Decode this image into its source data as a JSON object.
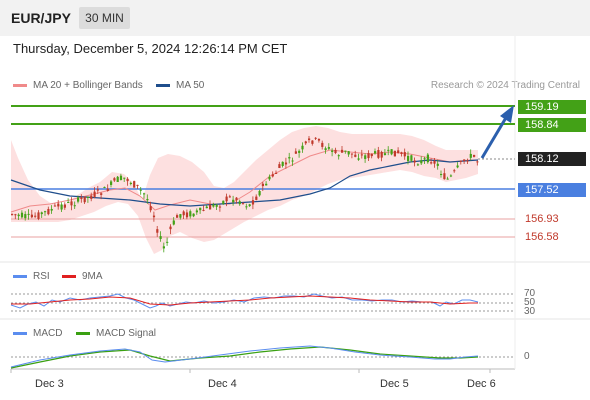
{
  "header": {
    "symbol": "EUR/JPY",
    "timeframe": "30 MIN"
  },
  "datetime": "Thursday, December 5, 2024 12:26:14 PM CET",
  "main_legend": [
    {
      "label": "MA 20 + Bollinger Bands",
      "color": "#f08a8a"
    },
    {
      "label": "MA 50",
      "color": "#1f4e8c"
    }
  ],
  "copyright": "Research © 2024 Trading Central",
  "price_levels": [
    {
      "value": "159.19",
      "style": "green"
    },
    {
      "value": "158.84",
      "style": "green"
    },
    {
      "value": "158.12",
      "style": "dark"
    },
    {
      "value": "157.52",
      "style": "blue"
    },
    {
      "value": "156.93",
      "style": "red"
    },
    {
      "value": "156.58",
      "style": "red"
    }
  ],
  "rsi_legend": [
    {
      "label": "RSI",
      "color": "#5b8def"
    },
    {
      "label": "9MA",
      "color": "#e02020"
    }
  ],
  "rsi_levels": [
    "70",
    "50",
    "30"
  ],
  "macd_legend": [
    {
      "label": "MACD",
      "color": "#5b8def"
    },
    {
      "label": "MACD Signal",
      "color": "#3aa012"
    }
  ],
  "macd_levels": [
    "0"
  ],
  "x_axis": [
    "Dec 3",
    "Dec 4",
    "Dec 5",
    "Dec 6"
  ],
  "colors": {
    "bull": "#43a117",
    "bear": "#c0392b",
    "support_blue": "#4a7fe0",
    "resistance_green": "#43a117",
    "band_fill": "#fde0e0"
  }
}
